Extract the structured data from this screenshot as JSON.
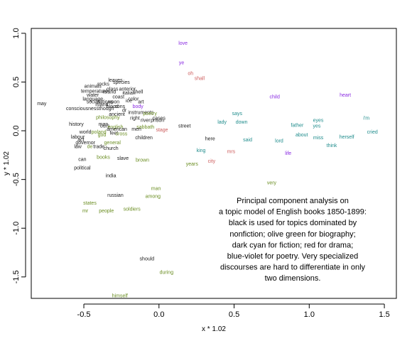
{
  "chart_data": {
    "type": "scatter",
    "xlabel": "x * 1.02",
    "ylabel": "y * 1.02",
    "xlim": [
      -0.85,
      1.58
    ],
    "ylim": [
      -1.72,
      1.05
    ],
    "x_ticks": [
      -0.5,
      0.0,
      0.5,
      1.0,
      1.5
    ],
    "x_tick_labels": [
      "-0.5",
      "0.0",
      "0.5",
      "1.0",
      "1.5"
    ],
    "y_ticks": [
      1.0,
      0.5,
      0.0,
      -0.5,
      -1.0,
      -1.5
    ],
    "y_tick_labels": [
      "1.0",
      "0.5",
      "0.0",
      "-0.5",
      "-1.0",
      "-1.5"
    ],
    "grid": false,
    "colors": {
      "nonfiction": "#1a1a1a",
      "biography": "#6b8e23",
      "fiction": "#1f8c8c",
      "drama": "#cd5c5c",
      "poetry": "#8a2be2"
    },
    "caption": [
      "Principal component analysis on",
      "a topic model of English books 1850-1899:",
      "black is used for topics dominated by",
      "nonfiction; olive green for biography;",
      "dark cyan for fiction; red for drama;",
      "blue-violet for poetry. Very specialized",
      "discourses are hard to differentiate in only",
      "two dimensions."
    ],
    "points": [
      {
        "label": "love",
        "x": 0.16,
        "y": 0.9,
        "genre": "poetry"
      },
      {
        "label": "ye",
        "x": 0.15,
        "y": 0.7,
        "genre": "poetry"
      },
      {
        "label": "oh",
        "x": 0.21,
        "y": 0.59,
        "genre": "drama"
      },
      {
        "label": "shall",
        "x": 0.27,
        "y": 0.54,
        "genre": "drama"
      },
      {
        "label": "child",
        "x": 0.77,
        "y": 0.35,
        "genre": "poetry"
      },
      {
        "label": "heart",
        "x": 1.24,
        "y": 0.37,
        "genre": "poetry"
      },
      {
        "label": "i'm",
        "x": 1.38,
        "y": 0.13,
        "genre": "fiction"
      },
      {
        "label": "cried",
        "x": 1.42,
        "y": -0.01,
        "genre": "fiction"
      },
      {
        "label": "says",
        "x": 0.52,
        "y": 0.18,
        "genre": "fiction"
      },
      {
        "label": "lady",
        "x": 0.42,
        "y": 0.09,
        "genre": "fiction"
      },
      {
        "label": "down",
        "x": 0.55,
        "y": 0.09,
        "genre": "fiction"
      },
      {
        "label": "eyes",
        "x": 1.06,
        "y": 0.11,
        "genre": "fiction"
      },
      {
        "label": "father",
        "x": 0.92,
        "y": 0.06,
        "genre": "fiction"
      },
      {
        "label": "yes",
        "x": 1.05,
        "y": 0.05,
        "genre": "fiction"
      },
      {
        "label": "about",
        "x": 0.95,
        "y": -0.04,
        "genre": "fiction"
      },
      {
        "label": "miss",
        "x": 1.06,
        "y": -0.07,
        "genre": "fiction"
      },
      {
        "label": "herself",
        "x": 1.25,
        "y": -0.06,
        "genre": "fiction"
      },
      {
        "label": "said",
        "x": 0.59,
        "y": -0.09,
        "genre": "fiction"
      },
      {
        "label": "lord",
        "x": 0.8,
        "y": -0.1,
        "genre": "fiction"
      },
      {
        "label": "think",
        "x": 1.15,
        "y": -0.15,
        "genre": "fiction"
      },
      {
        "label": "life",
        "x": 0.86,
        "y": -0.23,
        "genre": "poetry"
      },
      {
        "label": "here",
        "x": 0.34,
        "y": -0.08,
        "genre": "nonfiction"
      },
      {
        "label": "street",
        "x": 0.17,
        "y": 0.05,
        "genre": "nonfiction"
      },
      {
        "label": "king",
        "x": 0.28,
        "y": -0.2,
        "genre": "fiction"
      },
      {
        "label": "mrs",
        "x": 0.48,
        "y": -0.21,
        "genre": "drama"
      },
      {
        "label": "city",
        "x": 0.35,
        "y": -0.31,
        "genre": "drama"
      },
      {
        "label": "years",
        "x": 0.22,
        "y": -0.34,
        "genre": "biography"
      },
      {
        "label": "very",
        "x": 0.75,
        "y": -0.53,
        "genre": "biography"
      },
      {
        "label": "may",
        "x": -0.78,
        "y": 0.28,
        "genre": "nonfiction"
      },
      {
        "label": "leaves",
        "x": -0.29,
        "y": 0.52,
        "genre": "nonfiction"
      },
      {
        "label": "species",
        "x": -0.25,
        "y": 0.5,
        "genre": "nonfiction"
      },
      {
        "label": "animals",
        "x": -0.44,
        "y": 0.46,
        "genre": "nonfiction"
      },
      {
        "label": "rocks",
        "x": -0.37,
        "y": 0.48,
        "genre": "nonfiction"
      },
      {
        "label": "glass",
        "x": -0.31,
        "y": 0.43,
        "genre": "nonfiction"
      },
      {
        "label": "anterior",
        "x": -0.21,
        "y": 0.43,
        "genre": "nonfiction"
      },
      {
        "label": "temperature",
        "x": -0.43,
        "y": 0.41,
        "genre": "nonfiction"
      },
      {
        "label": "island",
        "x": -0.33,
        "y": 0.4,
        "genre": "nonfiction"
      },
      {
        "label": "italian",
        "x": -0.2,
        "y": 0.39,
        "genre": "nonfiction"
      },
      {
        "label": "shell",
        "x": -0.14,
        "y": 0.4,
        "genre": "nonfiction"
      },
      {
        "label": "water",
        "x": -0.44,
        "y": 0.37,
        "genre": "nonfiction"
      },
      {
        "label": "coast",
        "x": -0.27,
        "y": 0.35,
        "genre": "nonfiction"
      },
      {
        "label": "color",
        "x": -0.17,
        "y": 0.33,
        "genre": "nonfiction"
      },
      {
        "label": "ice",
        "x": -0.2,
        "y": 0.31,
        "genre": "nonfiction"
      },
      {
        "label": "art",
        "x": -0.12,
        "y": 0.3,
        "genre": "nonfiction"
      },
      {
        "label": "language",
        "x": -0.44,
        "y": 0.33,
        "genre": "nonfiction"
      },
      {
        "label": "social",
        "x": -0.44,
        "y": 0.3,
        "genre": "nonfiction"
      },
      {
        "label": "nations",
        "x": -0.36,
        "y": 0.3,
        "genre": "nonfiction"
      },
      {
        "label": "upon",
        "x": -0.3,
        "y": 0.3,
        "genre": "nonfiction"
      },
      {
        "label": "island",
        "x": -0.38,
        "y": 0.27,
        "genre": "nonfiction"
      },
      {
        "label": "blood",
        "x": -0.31,
        "y": 0.25,
        "genre": "nonfiction"
      },
      {
        "label": "cons",
        "x": -0.26,
        "y": 0.25,
        "genre": "nonfiction"
      },
      {
        "label": "body",
        "x": -0.14,
        "y": 0.25,
        "genre": "poetry"
      },
      {
        "label": "consciousness",
        "x": -0.51,
        "y": 0.23,
        "genre": "nonfiction"
      },
      {
        "label": "though",
        "x": -0.35,
        "y": 0.23,
        "genre": "nonfiction"
      },
      {
        "label": "dr",
        "x": -0.23,
        "y": 0.21,
        "genre": "nonfiction"
      },
      {
        "label": "instruments",
        "x": -0.12,
        "y": 0.19,
        "genre": "nonfiction"
      },
      {
        "label": "ancient",
        "x": -0.28,
        "y": 0.17,
        "genre": "nonfiction"
      },
      {
        "label": "right",
        "x": -0.16,
        "y": 0.13,
        "genre": "nonfiction"
      },
      {
        "label": "philosophy",
        "x": -0.34,
        "y": 0.14,
        "genre": "biography"
      },
      {
        "label": "poetry",
        "x": -0.06,
        "y": 0.18,
        "genre": "biography"
      },
      {
        "label": "cases",
        "x": 0.0,
        "y": 0.13,
        "genre": "nonfiction"
      },
      {
        "label": "river",
        "x": -0.09,
        "y": 0.11,
        "genre": "nonfiction"
      },
      {
        "label": "prison",
        "x": -0.01,
        "y": 0.11,
        "genre": "nonfiction"
      },
      {
        "label": "history",
        "x": -0.55,
        "y": 0.07,
        "genre": "nonfiction"
      },
      {
        "label": "man",
        "x": -0.37,
        "y": 0.07,
        "genre": "nonfiction"
      },
      {
        "label": "ours",
        "x": -0.36,
        "y": 0.05,
        "genre": "nonfiction"
      },
      {
        "label": "english",
        "x": -0.29,
        "y": 0.04,
        "genre": "biography"
      },
      {
        "label": "sabbath",
        "x": -0.09,
        "y": 0.04,
        "genre": "biography"
      },
      {
        "label": "american",
        "x": -0.28,
        "y": 0.02,
        "genre": "nonfiction"
      },
      {
        "label": "men",
        "x": -0.15,
        "y": 0.02,
        "genre": "nonfiction"
      },
      {
        "label": "stage",
        "x": 0.02,
        "y": 0.01,
        "genre": "drama"
      },
      {
        "label": "world",
        "x": -0.49,
        "y": -0.01,
        "genre": "nonfiction"
      },
      {
        "label": "poland",
        "x": -0.4,
        "y": -0.01,
        "genre": "biography"
      },
      {
        "label": "feet",
        "x": -0.3,
        "y": -0.02,
        "genre": "nonfiction"
      },
      {
        "label": "cross",
        "x": -0.25,
        "y": -0.03,
        "genre": "biography"
      },
      {
        "label": "god",
        "x": -0.38,
        "y": -0.04,
        "genre": "biography"
      },
      {
        "label": "labour",
        "x": -0.54,
        "y": -0.06,
        "genre": "nonfiction"
      },
      {
        "label": "children",
        "x": -0.1,
        "y": -0.07,
        "genre": "nonfiction"
      },
      {
        "label": "act",
        "x": -0.52,
        "y": -0.09,
        "genre": "nonfiction"
      },
      {
        "label": "general",
        "x": -0.31,
        "y": -0.12,
        "genre": "biography"
      },
      {
        "label": "governor",
        "x": -0.49,
        "y": -0.12,
        "genre": "nonfiction"
      },
      {
        "label": "law",
        "x": -0.54,
        "y": -0.16,
        "genre": "nonfiction"
      },
      {
        "label": "de",
        "x": -0.46,
        "y": -0.16,
        "genre": "biography"
      },
      {
        "label": "trade",
        "x": -0.4,
        "y": -0.16,
        "genre": "nonfiction"
      },
      {
        "label": "church",
        "x": -0.32,
        "y": -0.18,
        "genre": "nonfiction"
      },
      {
        "label": "can",
        "x": -0.51,
        "y": -0.29,
        "genre": "nonfiction"
      },
      {
        "label": "books",
        "x": -0.37,
        "y": -0.27,
        "genre": "biography"
      },
      {
        "label": "slave",
        "x": -0.24,
        "y": -0.28,
        "genre": "nonfiction"
      },
      {
        "label": "brown",
        "x": -0.11,
        "y": -0.3,
        "genre": "biography"
      },
      {
        "label": "political",
        "x": -0.51,
        "y": -0.38,
        "genre": "nonfiction"
      },
      {
        "label": "india",
        "x": -0.32,
        "y": -0.46,
        "genre": "nonfiction"
      },
      {
        "label": "man",
        "x": -0.02,
        "y": -0.59,
        "genre": "biography"
      },
      {
        "label": "russian",
        "x": -0.29,
        "y": -0.66,
        "genre": "nonfiction"
      },
      {
        "label": "among",
        "x": -0.04,
        "y": -0.67,
        "genre": "biography"
      },
      {
        "label": "states",
        "x": -0.46,
        "y": -0.74,
        "genre": "biography"
      },
      {
        "label": "mr",
        "x": -0.49,
        "y": -0.82,
        "genre": "biography"
      },
      {
        "label": "people",
        "x": -0.35,
        "y": -0.82,
        "genre": "biography"
      },
      {
        "label": "soldiers",
        "x": -0.18,
        "y": -0.8,
        "genre": "biography"
      },
      {
        "label": "should",
        "x": -0.08,
        "y": -1.31,
        "genre": "nonfiction"
      },
      {
        "label": "during",
        "x": 0.05,
        "y": -1.45,
        "genre": "biography"
      },
      {
        "label": "himself",
        "x": -0.26,
        "y": -1.69,
        "genre": "biography"
      }
    ]
  }
}
